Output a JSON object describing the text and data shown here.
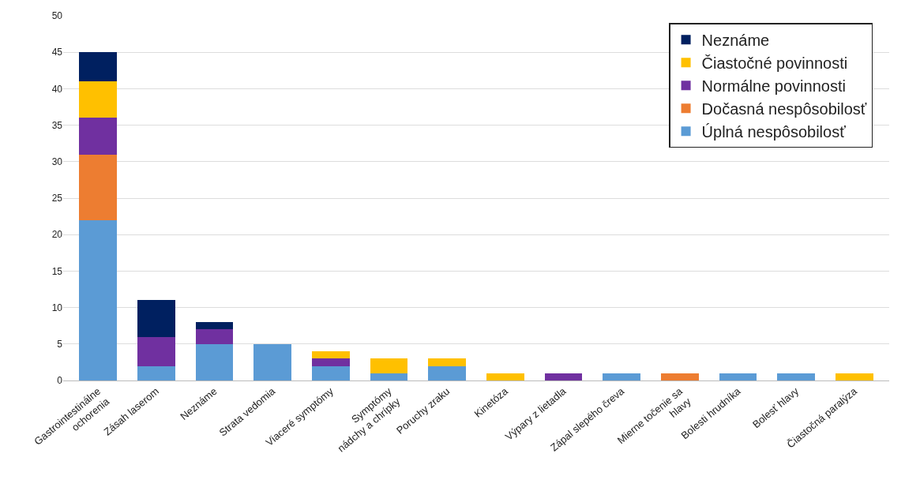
{
  "chart_data": {
    "type": "bar",
    "stacked": true,
    "categories": [
      "Gastrointestinálne\nochorenia",
      "Zásah laserom",
      "Neznáme",
      "Strata vedomia",
      "Viaceré symptómy",
      "Symptómy\nnádchy a chrípky",
      "Poruchy zraku",
      "Kinetóza",
      "Výpary z lietadla",
      "Zápal slepého čreva",
      "Mierne točenie sa\nhlavy",
      "Bolesti hrudníka",
      "Bolesť hlavy",
      "Čiastočná paralýza"
    ],
    "series": [
      {
        "name": "Úplná nespôsobilosť",
        "color": "#5b9bd5",
        "values": [
          22,
          2,
          5,
          5,
          2,
          1,
          2,
          null,
          null,
          1,
          null,
          1,
          1,
          null
        ]
      },
      {
        "name": "Dočasná nespôsobilosť",
        "color": "#ed7d31",
        "values": [
          9,
          null,
          null,
          null,
          null,
          null,
          null,
          null,
          null,
          null,
          1,
          null,
          null,
          null
        ]
      },
      {
        "name": "Normálne povinnosti",
        "color": "#7030a0",
        "values": [
          5,
          4,
          2,
          null,
          1,
          null,
          null,
          null,
          1,
          null,
          null,
          null,
          null,
          null
        ]
      },
      {
        "name": "Čiastočné povinnosti",
        "color": "#ffc000",
        "values": [
          5,
          null,
          null,
          null,
          1,
          2,
          1,
          1,
          null,
          null,
          null,
          null,
          null,
          1
        ]
      },
      {
        "name": "Neznáme",
        "color": "#002060",
        "values": [
          4,
          5,
          1,
          null,
          null,
          null,
          null,
          null,
          null,
          null,
          null,
          null,
          null,
          null
        ]
      }
    ],
    "ylim": [
      0,
      50
    ],
    "yticks": [
      0,
      5,
      10,
      15,
      20,
      25,
      30,
      35,
      40,
      45,
      50
    ],
    "grid": "y",
    "legend": "top right"
  }
}
